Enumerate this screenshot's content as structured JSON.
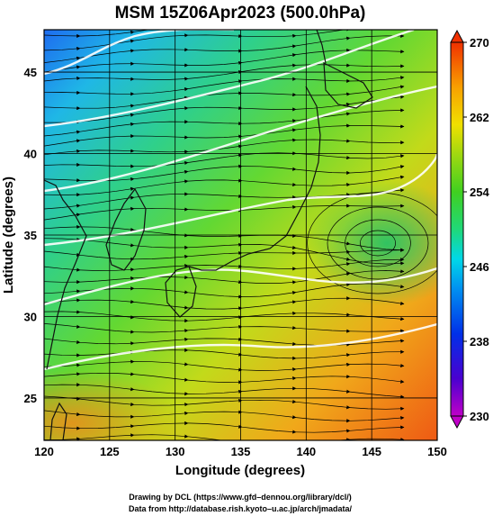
{
  "chart_data": {
    "type": "heatmap",
    "title": "MSM 15Z06Apr2023 (500.0hPa)",
    "xlabel": "Longitude (degrees)",
    "ylabel": "Latitude  (degrees)",
    "xlim": [
      120,
      150
    ],
    "ylim": [
      22.4,
      47.6
    ],
    "x_ticks": [
      120,
      125,
      130,
      135,
      140,
      145,
      150
    ],
    "y_ticks": [
      25,
      30,
      35,
      40,
      45
    ],
    "grid": true,
    "overlays": [
      "wind streamlines",
      "white contour lines",
      "coastlines"
    ],
    "colorbar": {
      "min": 230,
      "max": 270,
      "ticks": [
        230,
        238,
        246,
        254,
        262,
        270
      ],
      "position": "right"
    },
    "field_samples": [
      {
        "lon": 121,
        "lat": 47,
        "value": 240
      },
      {
        "lon": 128,
        "lat": 46,
        "value": 246
      },
      {
        "lon": 140,
        "lat": 45,
        "value": 258
      },
      {
        "lon": 149,
        "lat": 45,
        "value": 264
      },
      {
        "lon": 122,
        "lat": 40,
        "value": 252
      },
      {
        "lon": 135,
        "lat": 40,
        "value": 256
      },
      {
        "lon": 146,
        "lat": 36,
        "value": 252
      },
      {
        "lon": 125,
        "lat": 32,
        "value": 259
      },
      {
        "lon": 135,
        "lat": 30,
        "value": 262
      },
      {
        "lon": 121,
        "lat": 24,
        "value": 268
      },
      {
        "lon": 145,
        "lat": 24,
        "value": 264
      }
    ]
  },
  "footer": {
    "line1": "Drawing by DCL (https://www.gfd–dennou.org/library/dcl/)",
    "line2": "Data from http://database.rish.kyoto–u.ac.jp/arch/jmadata/"
  }
}
